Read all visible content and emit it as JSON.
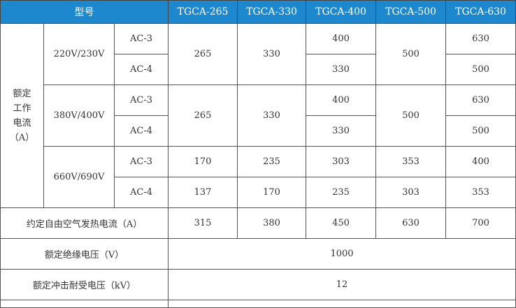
{
  "header": {
    "model_label": "型号",
    "models": [
      "TGCA-265",
      "TGCA-330",
      "TGCA-400",
      "TGCA-500",
      "TGCA-630"
    ]
  },
  "rated_current": {
    "label_lines": [
      "额定",
      "工作",
      "电流",
      "（A）"
    ],
    "groups": [
      {
        "voltage": "220V/230V",
        "ac3": [
          "265",
          "330",
          "400",
          "500",
          "630"
        ],
        "ac4": [
          "265",
          "330",
          "330",
          "500",
          "500"
        ]
      },
      {
        "voltage": "380V/400V",
        "ac3": [
          "265",
          "330",
          "400",
          "500",
          "630"
        ],
        "ac4": [
          "265",
          "330",
          "330",
          "500",
          "500"
        ]
      },
      {
        "voltage": "660V/690V",
        "ac3": [
          "170",
          "235",
          "303",
          "353",
          "400"
        ],
        "ac4": [
          "137",
          "170",
          "235",
          "303",
          "353"
        ]
      }
    ],
    "ac3_label": "AC-3",
    "ac4_label": "AC-4"
  },
  "thermal_current": {
    "label": "约定自由空气发热电流（A）",
    "values": [
      "315",
      "380",
      "450",
      "630",
      "700"
    ]
  },
  "insulation_voltage": {
    "label": "额定绝缘电压（V）",
    "value": "1000"
  },
  "impulse_voltage": {
    "label": "额定冲击耐受电压（kV）",
    "value": "12"
  },
  "colors": {
    "header_bg": "#1e88cf",
    "header_text": "#ffffff",
    "border": "#555555"
  }
}
